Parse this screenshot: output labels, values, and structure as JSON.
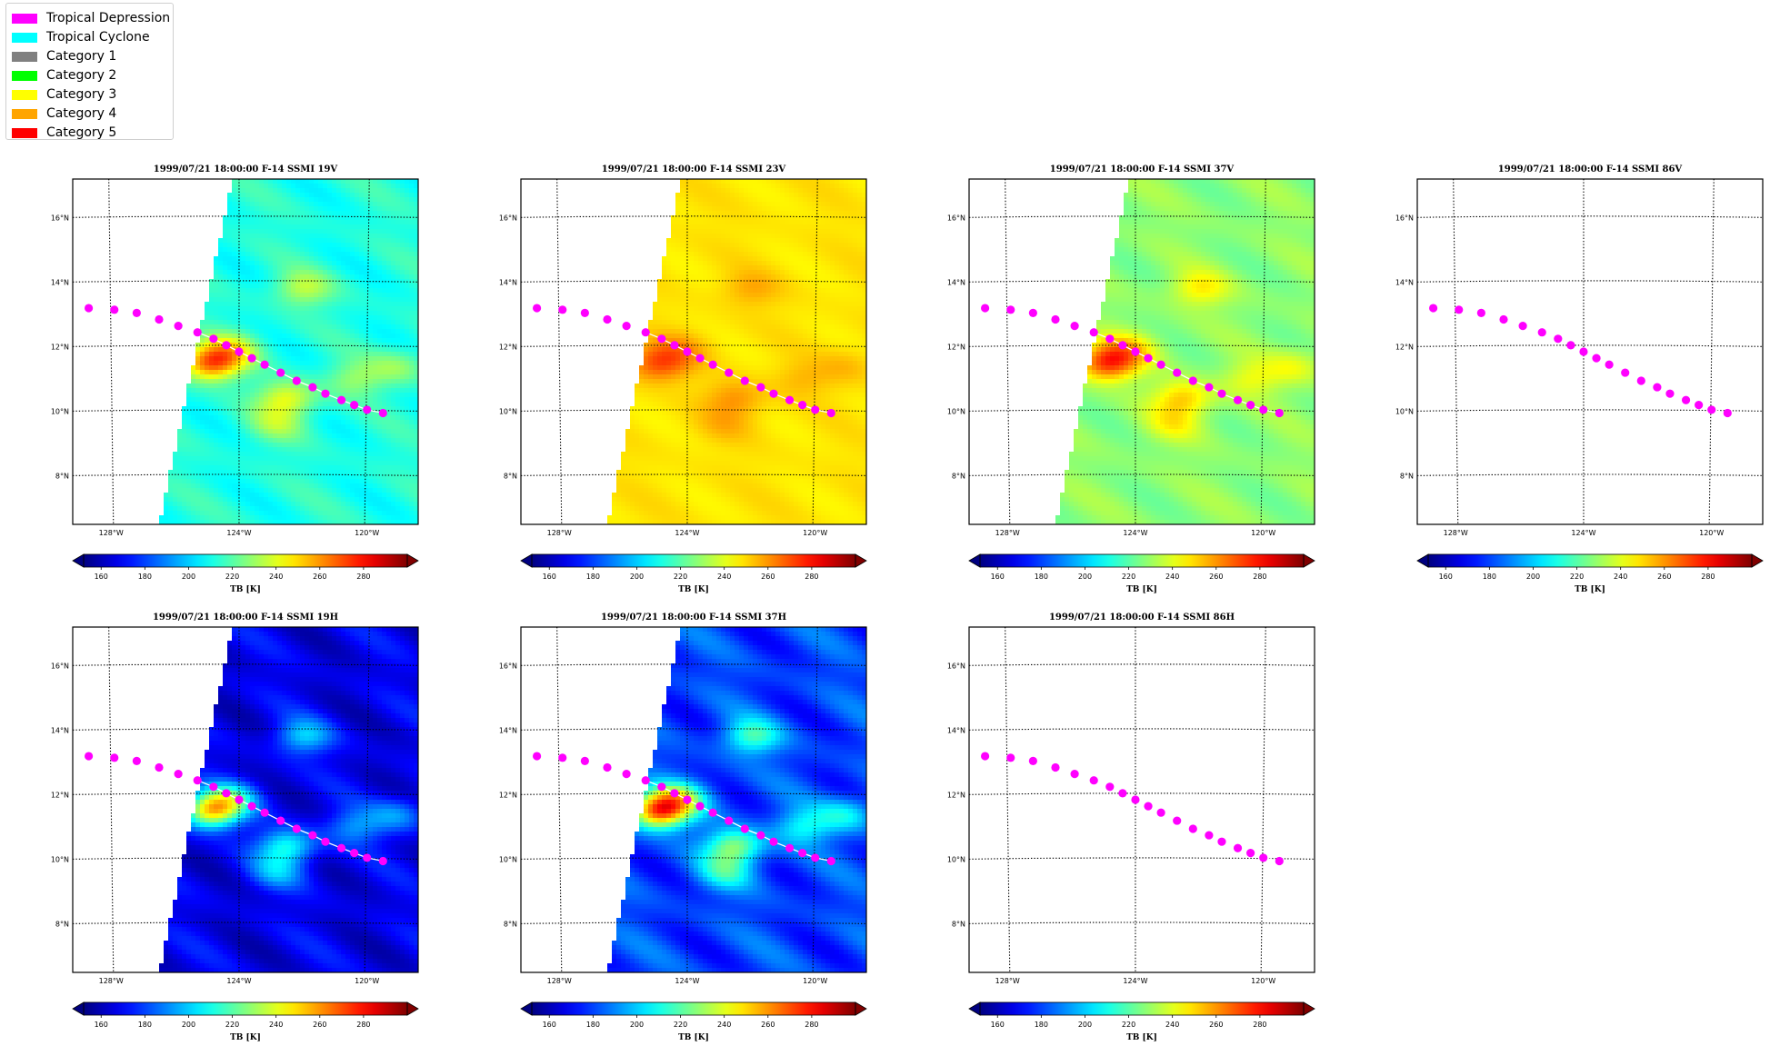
{
  "legend": {
    "items": [
      {
        "label": "Tropical Depression",
        "color": "#ff00ff"
      },
      {
        "label": "Tropical Cyclone",
        "color": "#00ffff"
      },
      {
        "label": "Category 1",
        "color": "#808080"
      },
      {
        "label": "Category 2",
        "color": "#00ff00"
      },
      {
        "label": "Category 3",
        "color": "#ffff00"
      },
      {
        "label": "Category 4",
        "color": "#ffa500"
      },
      {
        "label": "Category 5",
        "color": "#ff0000"
      }
    ]
  },
  "chart_data": [
    {
      "type": "map",
      "title": "1999/07/21 18:00:00  F-14 SSMI 19V",
      "channel": "19V",
      "base_tb": 212,
      "has_image": true
    },
    {
      "type": "map",
      "title": "1999/07/21 18:00:00  F-14 SSMI 23V",
      "channel": "23V",
      "base_tb": 248,
      "has_image": true
    },
    {
      "type": "map",
      "title": "1999/07/21 18:00:00  F-14 SSMI 37V",
      "channel": "37V",
      "base_tb": 228,
      "has_image": true
    },
    {
      "type": "map",
      "title": "1999/07/21 18:00:00  F-14 SSMI 86V",
      "channel": "86V",
      "base_tb": null,
      "has_image": false
    },
    {
      "type": "map",
      "title": "1999/07/21 18:00:00  F-14 SSMI 19H",
      "channel": "19H",
      "base_tb": 167,
      "has_image": true
    },
    {
      "type": "map",
      "title": "1999/07/21 18:00:00  F-14 SSMI 37H",
      "channel": "37H",
      "base_tb": 180,
      "has_image": true
    },
    {
      "type": "map",
      "title": "1999/07/21 18:00:00  F-14 SSMI 86H",
      "channel": "86H",
      "base_tb": null,
      "has_image": false
    }
  ],
  "map_axes": {
    "lon_range": [
      -129.2,
      -118.4
    ],
    "lat_range": [
      6.5,
      17.2
    ],
    "lon_ticks": [
      -128,
      -124,
      -120
    ],
    "lon_tick_labels": [
      "128°W",
      "124°W",
      "120°W"
    ],
    "lat_ticks": [
      8,
      10,
      12,
      14,
      16
    ],
    "lat_tick_labels": [
      "8°N",
      "10°N",
      "12°N",
      "14°N",
      "16°N"
    ]
  },
  "swath_edge": {
    "bottom_lon": -126.5,
    "top_lon": -124.2
  },
  "track": {
    "color": "#ff00ff",
    "category": "Tropical Depression",
    "points": [
      {
        "lon": -128.7,
        "lat": 13.2
      },
      {
        "lon": -127.9,
        "lat": 13.15
      },
      {
        "lon": -127.2,
        "lat": 13.05
      },
      {
        "lon": -126.5,
        "lat": 12.85
      },
      {
        "lon": -125.9,
        "lat": 12.65
      },
      {
        "lon": -125.3,
        "lat": 12.45
      },
      {
        "lon": -124.8,
        "lat": 12.25
      },
      {
        "lon": -124.4,
        "lat": 12.05
      },
      {
        "lon": -124.0,
        "lat": 11.85
      },
      {
        "lon": -123.6,
        "lat": 11.65
      },
      {
        "lon": -123.2,
        "lat": 11.45
      },
      {
        "lon": -122.7,
        "lat": 11.2
      },
      {
        "lon": -122.2,
        "lat": 10.95
      },
      {
        "lon": -121.7,
        "lat": 10.75
      },
      {
        "lon": -121.3,
        "lat": 10.55
      },
      {
        "lon": -120.8,
        "lat": 10.35
      },
      {
        "lon": -120.4,
        "lat": 10.2
      },
      {
        "lon": -120.0,
        "lat": 10.05
      },
      {
        "lon": -119.5,
        "lat": 9.95
      }
    ]
  },
  "storm_features": [
    {
      "lon": -124.9,
      "lat": 11.5,
      "amp": 1.0
    },
    {
      "lon": -124.2,
      "lat": 11.9,
      "amp": 0.45
    },
    {
      "lon": -122.5,
      "lat": 10.4,
      "amp": 0.55
    },
    {
      "lon": -122.0,
      "lat": 13.8,
      "amp": 0.4
    },
    {
      "lon": -120.4,
      "lat": 11.0,
      "amp": 0.3
    },
    {
      "lon": -119.0,
      "lat": 11.4,
      "amp": 0.3
    },
    {
      "lon": -122.8,
      "lat": 9.6,
      "amp": 0.3
    }
  ],
  "colorbar": {
    "label": "TB [K]",
    "range": [
      152,
      300
    ],
    "ticks": [
      160,
      180,
      200,
      220,
      240,
      260,
      280
    ],
    "tick_labels": [
      "160",
      "180",
      "200",
      "220",
      "240",
      "260",
      "280"
    ]
  }
}
